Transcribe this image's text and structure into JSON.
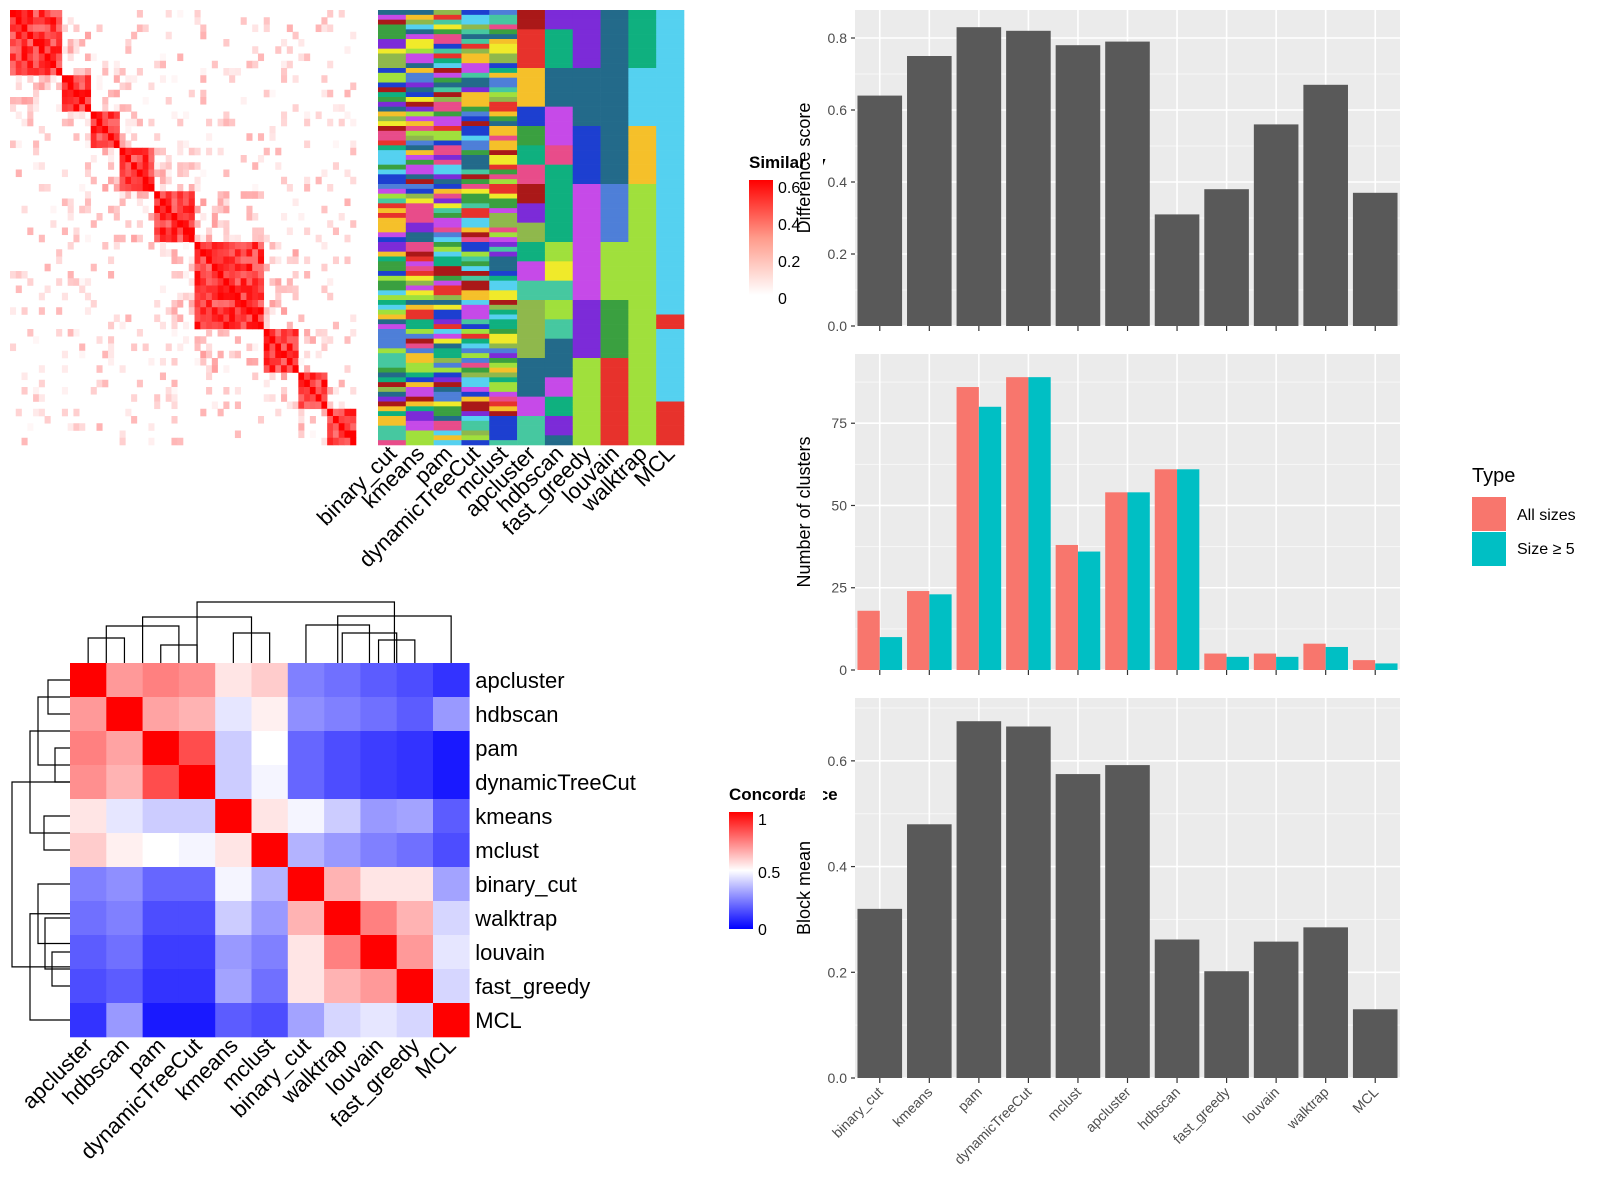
{
  "methods": [
    "binary_cut",
    "kmeans",
    "pam",
    "dynamicTreeCut",
    "mclust",
    "apcluster",
    "hdbscan",
    "fast_greedy",
    "louvain",
    "walktrap",
    "MCL"
  ],
  "colors": {
    "bar": "#595959",
    "panel": "#ebebeb",
    "grid": "#ffffff",
    "all_sizes": "#F8766D",
    "size_ge5": "#00BFC4",
    "concord_low": "#0000ff",
    "concord_mid": "#ffffff",
    "concord_high": "#ff0000",
    "sim_high": "#ff0000"
  },
  "similarity_heatmap": {
    "legend_title": "Similarity",
    "legend_ticks": [
      "0.6",
      "0.4",
      "0.2",
      "0"
    ],
    "column_labels": [
      "binary_cut",
      "kmeans",
      "pam",
      "dynamicTreeCut",
      "mclust",
      "apcluster",
      "hdbscan",
      "fast_greedy",
      "louvain",
      "walktrap",
      "MCL"
    ]
  },
  "concordance_heatmap": {
    "legend_title": "Concordance",
    "legend_ticks": [
      "1",
      "0.5",
      "0"
    ],
    "order": [
      "apcluster",
      "hdbscan",
      "pam",
      "dynamicTreeCut",
      "kmeans",
      "mclust",
      "binary_cut",
      "walktrap",
      "louvain",
      "fast_greedy",
      "MCL"
    ],
    "matrix": [
      [
        1.0,
        0.7,
        0.75,
        0.72,
        0.55,
        0.6,
        0.25,
        0.22,
        0.18,
        0.15,
        0.1
      ],
      [
        0.7,
        1.0,
        0.68,
        0.65,
        0.45,
        0.53,
        0.28,
        0.25,
        0.22,
        0.18,
        0.3
      ],
      [
        0.75,
        0.68,
        1.0,
        0.85,
        0.4,
        0.5,
        0.2,
        0.15,
        0.12,
        0.1,
        0.05
      ],
      [
        0.72,
        0.65,
        0.85,
        1.0,
        0.4,
        0.48,
        0.2,
        0.15,
        0.12,
        0.1,
        0.05
      ],
      [
        0.55,
        0.45,
        0.4,
        0.4,
        1.0,
        0.55,
        0.48,
        0.4,
        0.3,
        0.32,
        0.18
      ],
      [
        0.6,
        0.53,
        0.5,
        0.48,
        0.55,
        1.0,
        0.35,
        0.3,
        0.25,
        0.22,
        0.15
      ],
      [
        0.25,
        0.28,
        0.2,
        0.2,
        0.48,
        0.35,
        1.0,
        0.65,
        0.55,
        0.55,
        0.32
      ],
      [
        0.22,
        0.25,
        0.15,
        0.15,
        0.4,
        0.3,
        0.65,
        1.0,
        0.75,
        0.65,
        0.42
      ],
      [
        0.18,
        0.22,
        0.12,
        0.12,
        0.3,
        0.25,
        0.55,
        0.75,
        1.0,
        0.7,
        0.45
      ],
      [
        0.15,
        0.18,
        0.1,
        0.1,
        0.32,
        0.22,
        0.55,
        0.65,
        0.7,
        1.0,
        0.42
      ],
      [
        0.1,
        0.3,
        0.05,
        0.05,
        0.18,
        0.15,
        0.32,
        0.42,
        0.45,
        0.42,
        1.0
      ]
    ]
  },
  "chart_data": [
    {
      "type": "bar",
      "categories": [
        "binary_cut",
        "kmeans",
        "pam",
        "dynamicTreeCut",
        "mclust",
        "apcluster",
        "hdbscan",
        "fast_greedy",
        "louvain",
        "walktrap",
        "MCL"
      ],
      "values": [
        0.64,
        0.75,
        0.83,
        0.82,
        0.78,
        0.79,
        0.31,
        0.38,
        0.56,
        0.67,
        0.37
      ],
      "ylabel": "Difference score",
      "ylim": [
        0,
        0.85
      ],
      "yticks": [
        "0.0",
        "0.2",
        "0.4",
        "0.6",
        "0.8"
      ],
      "grid": true
    },
    {
      "type": "bar",
      "categories": [
        "binary_cut",
        "kmeans",
        "pam",
        "dynamicTreeCut",
        "mclust",
        "apcluster",
        "hdbscan",
        "fast_greedy",
        "louvain",
        "walktrap",
        "MCL"
      ],
      "series": [
        {
          "name": "All sizes",
          "values": [
            18,
            24,
            86,
            89,
            38,
            54,
            61,
            5,
            5,
            8,
            3
          ]
        },
        {
          "name": "Size ≥ 5",
          "values": [
            10,
            23,
            80,
            89,
            36,
            54,
            61,
            4,
            4,
            7,
            2
          ]
        }
      ],
      "ylabel": "Number of clusters",
      "ylim": [
        0,
        93
      ],
      "yticks": [
        "0",
        "25",
        "50",
        "75"
      ],
      "legend_title": "Type",
      "legend_position": "right",
      "grid": true
    },
    {
      "type": "bar",
      "categories": [
        "binary_cut",
        "kmeans",
        "pam",
        "dynamicTreeCut",
        "mclust",
        "apcluster",
        "hdbscan",
        "fast_greedy",
        "louvain",
        "walktrap",
        "MCL"
      ],
      "values": [
        0.32,
        0.48,
        0.675,
        0.665,
        0.575,
        0.592,
        0.262,
        0.202,
        0.258,
        0.285,
        0.13
      ],
      "ylabel": "Block mean",
      "ylim": [
        0,
        0.7
      ],
      "yticks": [
        "0.0",
        "0.2",
        "0.4",
        "0.6"
      ],
      "grid": true
    }
  ]
}
